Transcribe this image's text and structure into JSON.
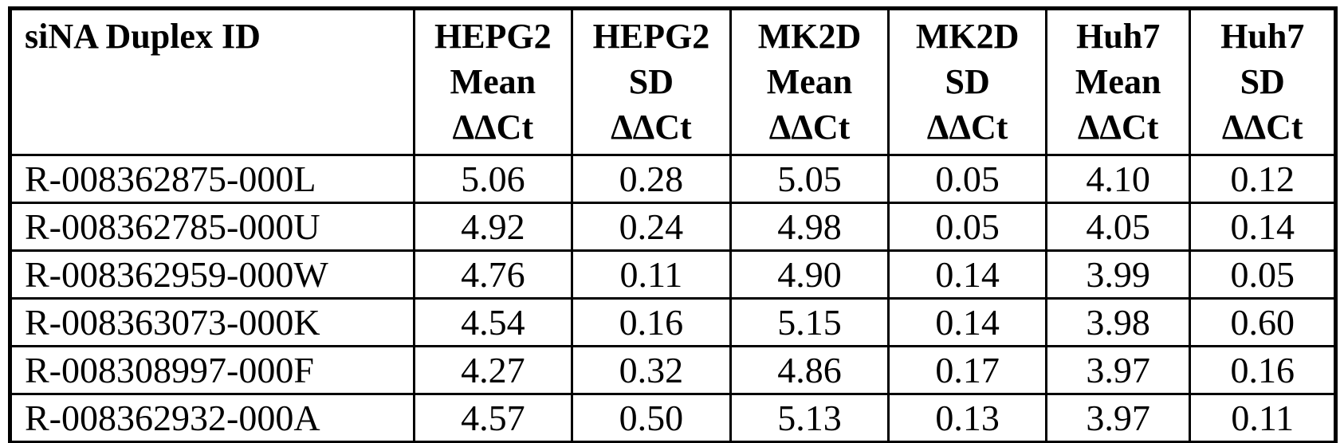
{
  "page": {
    "background_color": "#ffffff",
    "text_color": "#000000",
    "border_color": "#000000"
  },
  "table": {
    "id_header": "siNA Duplex ID",
    "value_columns": [
      {
        "cell_line": "HEPG2",
        "stat": "Mean",
        "metric": "ΔΔCt"
      },
      {
        "cell_line": "HEPG2",
        "stat": "SD",
        "metric": "ΔΔCt"
      },
      {
        "cell_line": "MK2D",
        "stat": "Mean",
        "metric": "ΔΔCt"
      },
      {
        "cell_line": "MK2D",
        "stat": "SD",
        "metric": "ΔΔCt"
      },
      {
        "cell_line": "Huh7",
        "stat": "Mean",
        "metric": "ΔΔCt"
      },
      {
        "cell_line": "Huh7",
        "stat": "SD",
        "metric": "ΔΔCt"
      }
    ],
    "rows": [
      {
        "duplex_id": "R-008362875-000L",
        "values": [
          "5.06",
          "0.28",
          "5.05",
          "0.05",
          "4.10",
          "0.12"
        ]
      },
      {
        "duplex_id": "R-008362785-000U",
        "values": [
          "4.92",
          "0.24",
          "4.98",
          "0.05",
          "4.05",
          "0.14"
        ]
      },
      {
        "duplex_id": "R-008362959-000W",
        "values": [
          "4.76",
          "0.11",
          "4.90",
          "0.14",
          "3.99",
          "0.05"
        ]
      },
      {
        "duplex_id": "R-008363073-000K",
        "values": [
          "4.54",
          "0.16",
          "5.15",
          "0.14",
          "3.98",
          "0.60"
        ]
      },
      {
        "duplex_id": "R-008308997-000F",
        "values": [
          "4.27",
          "0.32",
          "4.86",
          "0.17",
          "3.97",
          "0.16"
        ]
      },
      {
        "duplex_id": "R-008362932-000A",
        "values": [
          "4.57",
          "0.50",
          "5.13",
          "0.13",
          "3.97",
          "0.11"
        ]
      }
    ]
  }
}
